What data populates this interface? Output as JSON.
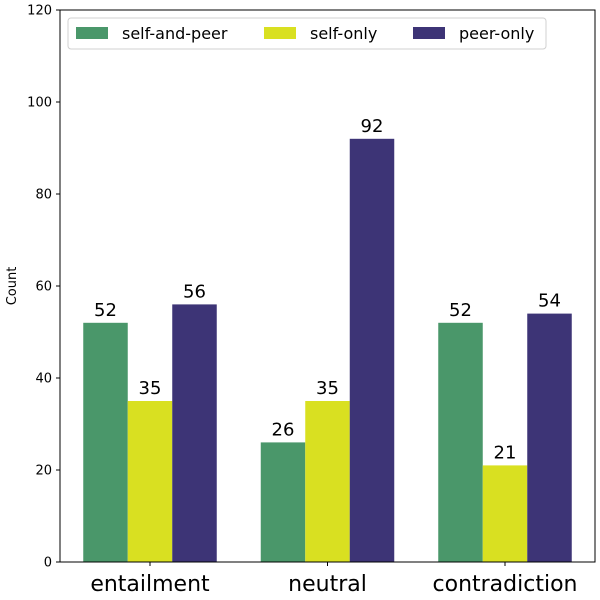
{
  "chart_data": {
    "type": "bar",
    "title": "",
    "xlabel": "",
    "ylabel": "Count",
    "ylim": [
      0,
      120
    ],
    "yticks": [
      0,
      20,
      40,
      60,
      80,
      100,
      120
    ],
    "categories": [
      "entailment",
      "neutral",
      "contradiction"
    ],
    "series": [
      {
        "name": "self-and-peer",
        "color": "#4a976a",
        "values": [
          52,
          26,
          52
        ]
      },
      {
        "name": "self-only",
        "color": "#d9e021",
        "values": [
          35,
          35,
          21
        ]
      },
      {
        "name": "peer-only",
        "color": "#3d3476",
        "values": [
          56,
          92,
          54
        ]
      }
    ],
    "legend_position": "top"
  }
}
